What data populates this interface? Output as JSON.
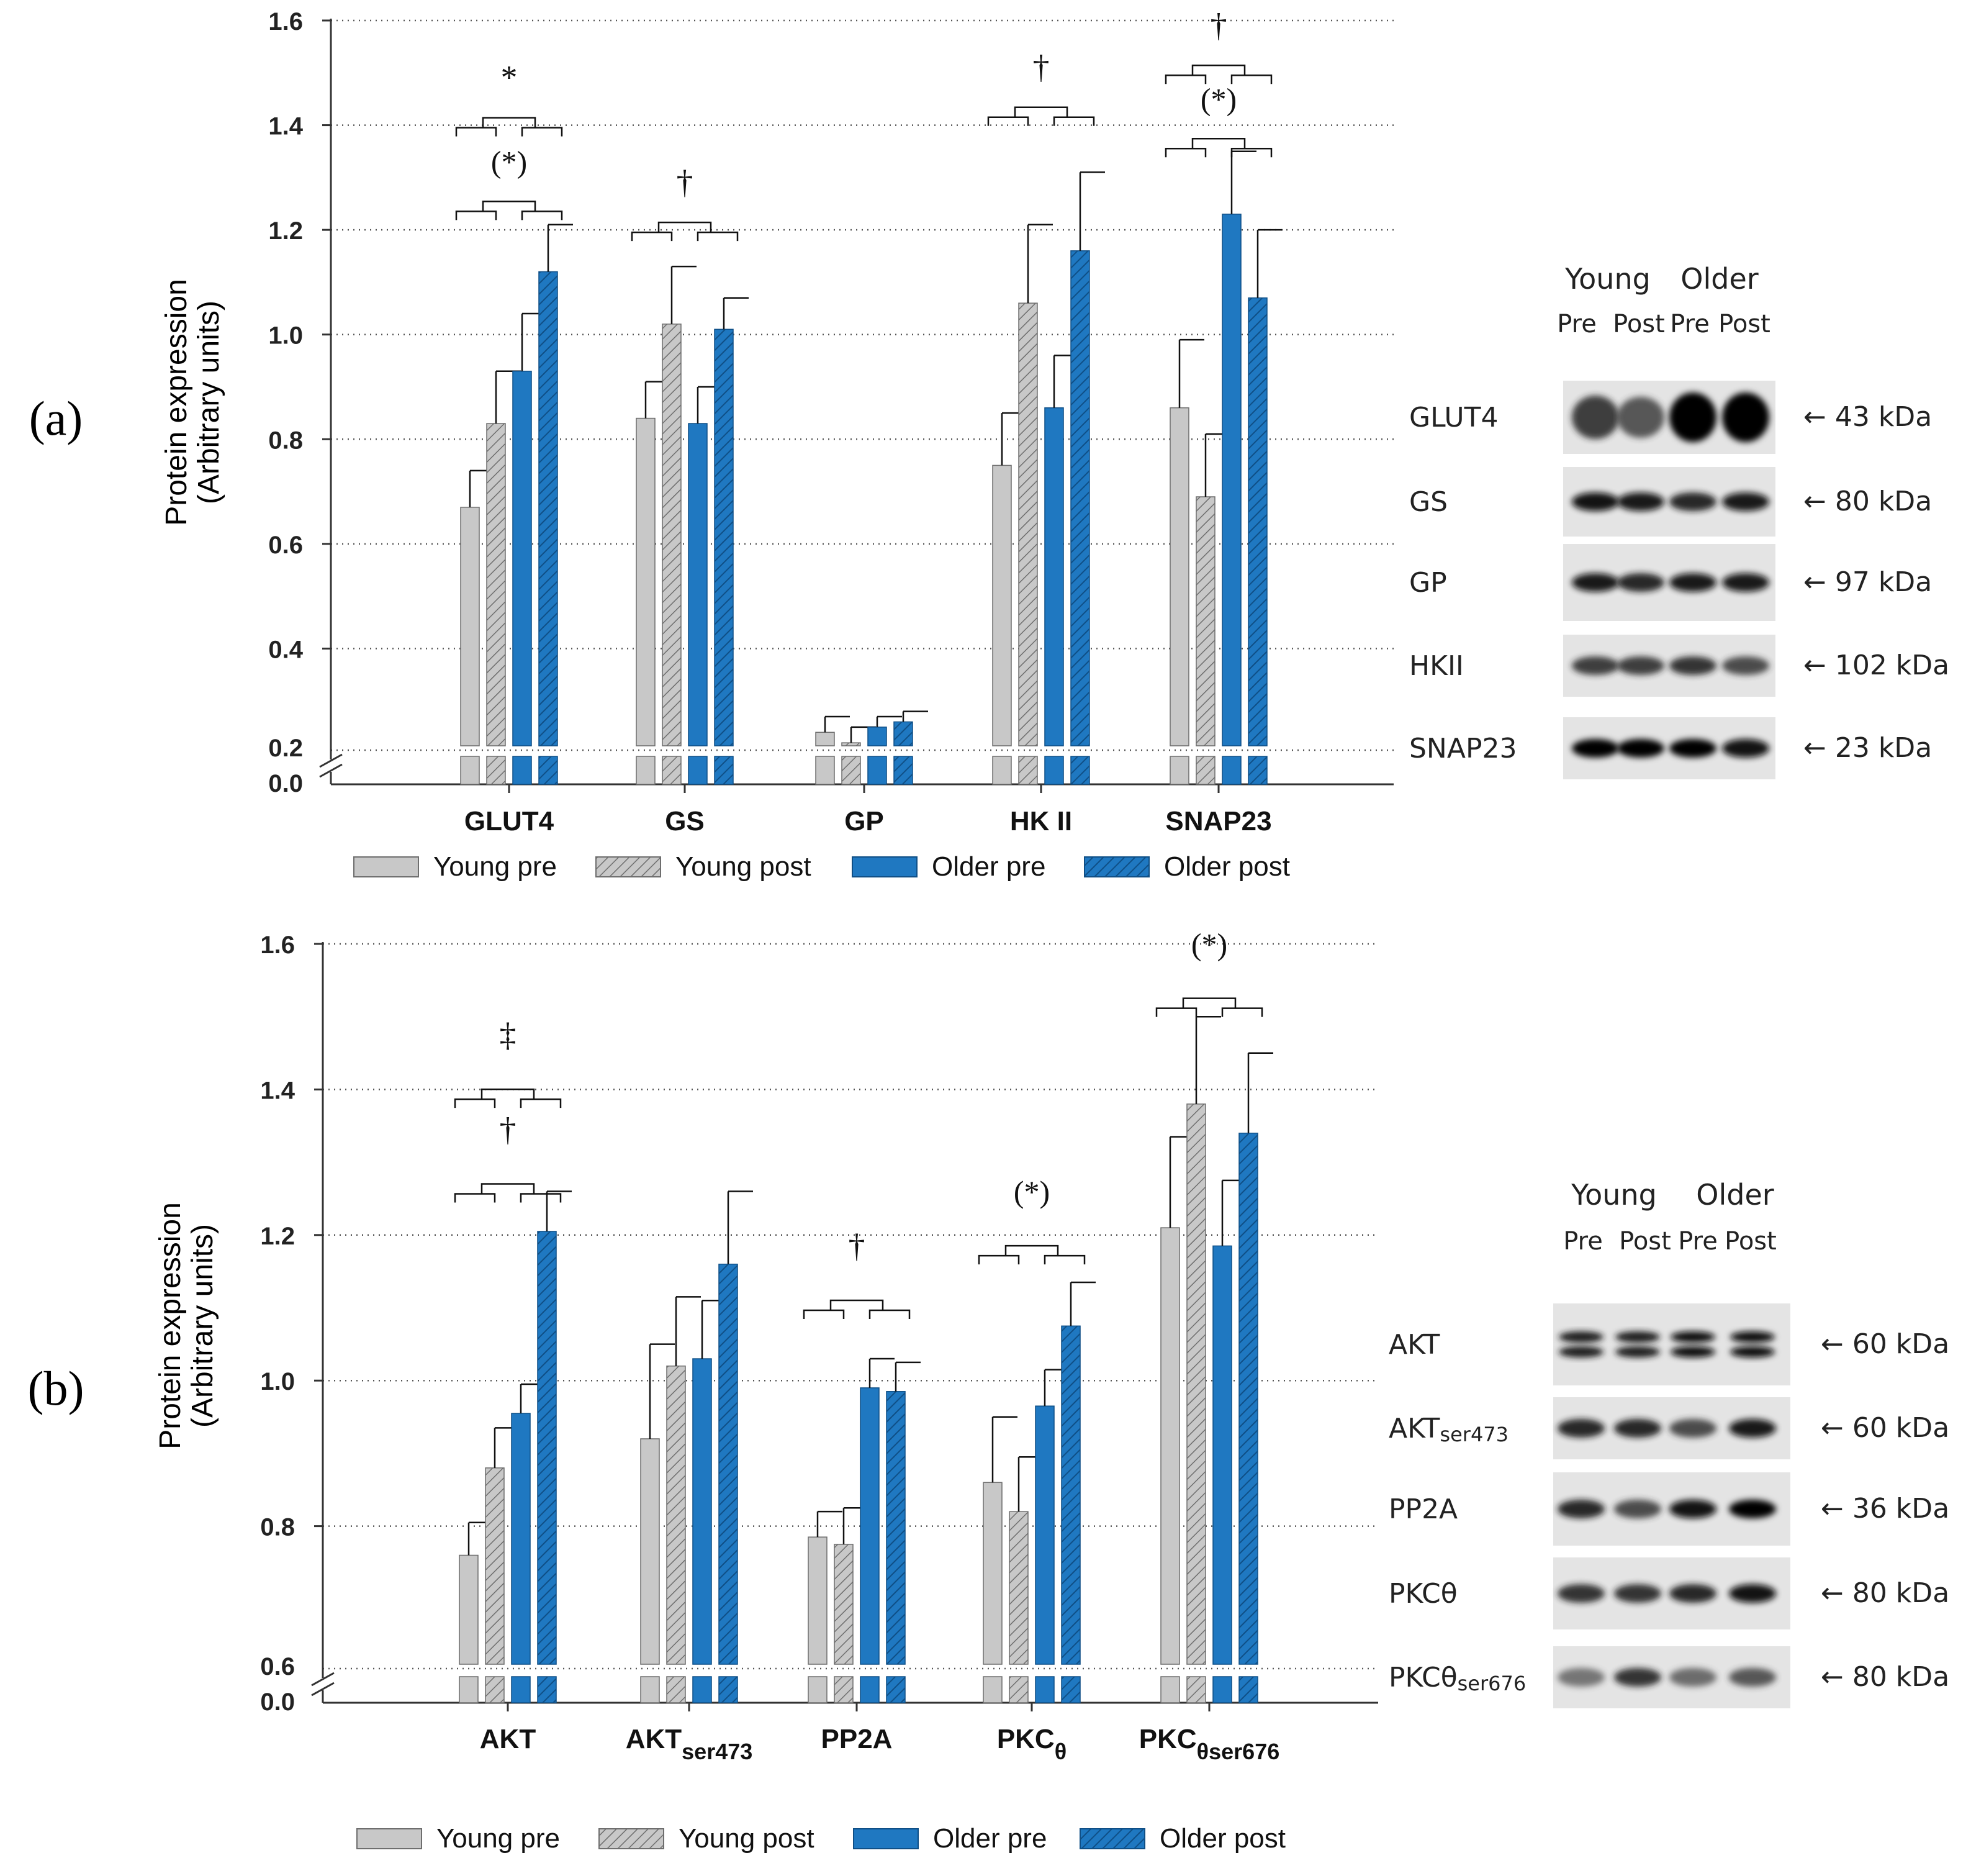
{
  "colors": {
    "young": "#c8c8c8",
    "young_stroke": "#6e6e6e",
    "older": "#1f78c1",
    "older_stroke": "#0f4f86",
    "grid": "#555555",
    "axis": "#333333"
  },
  "series": [
    {
      "name": "Young pre",
      "color": "young",
      "hatch": false
    },
    {
      "name": "Young post",
      "color": "young",
      "hatch": true
    },
    {
      "name": "Older pre",
      "color": "older",
      "hatch": false
    },
    {
      "name": "Older post",
      "color": "older",
      "hatch": true
    }
  ],
  "chart_data": [
    {
      "type": "bar",
      "panel_label": "(a)",
      "ylabel": [
        "Protein expression",
        "(Arbitrary units)"
      ],
      "ylim": [
        0.2,
        1.6
      ],
      "axis_break": {
        "lower": "0.0",
        "upper": "0.2"
      },
      "yticks": [
        "1.6",
        "1.4",
        "1.2",
        "1.0",
        "0.8",
        "0.6",
        "0.4"
      ],
      "grid": "dotted",
      "legend_position": "bottom",
      "categories": [
        {
          "main": "GLUT4",
          "sub": ""
        },
        {
          "main": "GS",
          "sub": ""
        },
        {
          "main": "GP",
          "sub": ""
        },
        {
          "main": "HK II",
          "sub": ""
        },
        {
          "main": "SNAP23",
          "sub": ""
        }
      ],
      "values": [
        [
          0.67,
          0.83,
          0.93,
          1.12
        ],
        [
          0.84,
          1.02,
          0.83,
          1.01
        ],
        [
          0.24,
          0.22,
          0.25,
          0.26
        ],
        [
          0.75,
          1.06,
          0.86,
          1.16
        ],
        [
          0.86,
          0.69,
          1.23,
          1.07
        ]
      ],
      "errors": [
        [
          0.07,
          0.1,
          0.11,
          0.09
        ],
        [
          0.07,
          0.11,
          0.07,
          0.06
        ],
        [
          0.03,
          0.03,
          0.02,
          0.02
        ],
        [
          0.1,
          0.15,
          0.1,
          0.15
        ],
        [
          0.13,
          0.12,
          0.12,
          0.13
        ]
      ],
      "annotations": [
        {
          "text": "*",
          "x_cat": 0,
          "y": 1.47
        },
        {
          "text": "(*)",
          "x_cat": 0,
          "y": 1.31
        },
        {
          "text": "†",
          "x_cat": 1,
          "y": 1.27
        },
        {
          "text": "†",
          "x_cat": 3,
          "y": 1.49
        },
        {
          "text": "†",
          "x_cat": 4,
          "y": 1.57
        },
        {
          "text": "(*)",
          "x_cat": 4,
          "y": 1.43
        }
      ]
    },
    {
      "type": "bar",
      "panel_label": "(b)",
      "ylabel": [
        "Protein expression",
        "(Arbitrary units)"
      ],
      "ylim": [
        0.6,
        1.6
      ],
      "axis_break": {
        "lower": "0.0",
        "upper": "0.6"
      },
      "yticks": [
        "1.6",
        "1.4",
        "1.2",
        "1.0",
        "0.8"
      ],
      "grid": "dotted",
      "legend_position": "bottom",
      "categories": [
        {
          "main": "AKT",
          "sub": ""
        },
        {
          "main": "AKT",
          "sub": "ser473"
        },
        {
          "main": "PP2A",
          "sub": ""
        },
        {
          "main": "PKC",
          "sub": "θ"
        },
        {
          "main": "PKC",
          "sub": "θser676"
        }
      ],
      "values": [
        [
          0.76,
          0.88,
          0.955,
          1.205
        ],
        [
          0.92,
          1.02,
          1.03,
          1.16
        ],
        [
          0.785,
          0.775,
          0.99,
          0.985
        ],
        [
          0.86,
          0.82,
          0.965,
          1.075
        ],
        [
          1.21,
          1.38,
          1.185,
          1.34
        ]
      ],
      "errors": [
        [
          0.045,
          0.055,
          0.04,
          0.055
        ],
        [
          0.13,
          0.095,
          0.08,
          0.1
        ],
        [
          0.035,
          0.05,
          0.04,
          0.04
        ],
        [
          0.09,
          0.075,
          0.05,
          0.06
        ],
        [
          0.125,
          0.12,
          0.09,
          0.11
        ]
      ],
      "annotations": [
        {
          "text": "‡",
          "x_cat": 0,
          "y": 1.46
        },
        {
          "text": "†",
          "x_cat": 0,
          "y": 1.33
        },
        {
          "text": "†",
          "x_cat": 2,
          "y": 1.17
        },
        {
          "text": "(*)",
          "x_cat": 3,
          "y": 1.245
        },
        {
          "text": "(*)",
          "x_cat": 4,
          "y": 1.585
        }
      ]
    }
  ],
  "western_blots": [
    {
      "group_labels": [
        "Young",
        "Older"
      ],
      "lane_labels": [
        "Pre",
        "Post",
        "Pre",
        "Post"
      ],
      "rows": [
        {
          "protein": "GLUT4",
          "sub": "",
          "kda": "← 43 kDa",
          "intensity": [
            0.75,
            0.65,
            1.0,
            1.0
          ]
        },
        {
          "protein": "GS",
          "sub": "",
          "kda": "← 80 kDa",
          "intensity": [
            0.95,
            0.9,
            0.85,
            0.9
          ]
        },
        {
          "protein": "GP",
          "sub": "",
          "kda": "← 97 kDa",
          "intensity": [
            0.9,
            0.85,
            0.9,
            0.9
          ]
        },
        {
          "protein": "HKII",
          "sub": "",
          "kda": "← 102 kDa",
          "intensity": [
            0.75,
            0.75,
            0.8,
            0.7
          ]
        },
        {
          "protein": "SNAP23",
          "sub": "",
          "kda": "← 23 kDa",
          "intensity": [
            1.0,
            1.0,
            1.0,
            0.95
          ]
        }
      ]
    },
    {
      "group_labels": [
        "Young",
        "Older"
      ],
      "lane_labels": [
        "Pre",
        "Post",
        "Pre",
        "Post"
      ],
      "rows": [
        {
          "protein": "AKT",
          "sub": "",
          "kda": "← 60 kDa",
          "intensity": [
            0.8,
            0.8,
            0.9,
            0.95
          ]
        },
        {
          "protein": "AKT",
          "sub": "ser473",
          "kda": "← 60 kDa",
          "intensity": [
            0.85,
            0.85,
            0.7,
            0.9
          ]
        },
        {
          "protein": "PP2A",
          "sub": "",
          "kda": "← 36 kDa",
          "intensity": [
            0.85,
            0.7,
            0.95,
            1.0
          ]
        },
        {
          "protein": "PKCθ",
          "sub": "",
          "kda": "← 80 kDa",
          "intensity": [
            0.8,
            0.8,
            0.85,
            0.95
          ]
        },
        {
          "protein": "PKCθ",
          "sub": "ser676",
          "kda": "← 80 kDa",
          "intensity": [
            0.5,
            0.8,
            0.55,
            0.65
          ]
        }
      ]
    }
  ]
}
